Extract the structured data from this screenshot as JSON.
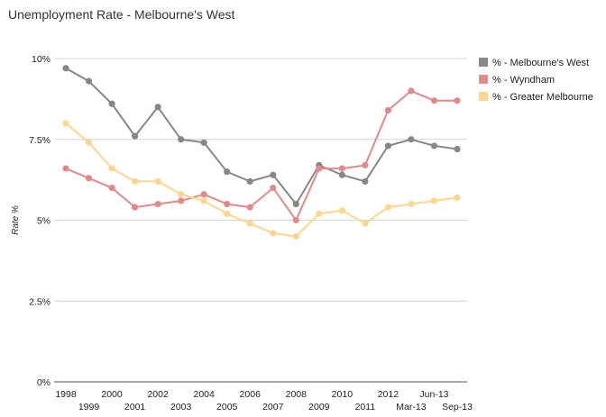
{
  "chart_data": {
    "type": "line",
    "title": "Unemployment Rate - Melbourne's West",
    "ylabel": "Rate %",
    "xlabel": "",
    "ylim": [
      0,
      10
    ],
    "yticks": [
      0,
      2.5,
      5,
      7.5,
      10
    ],
    "ytick_labels": [
      "0%",
      "2.5%",
      "5%",
      "7.5%",
      "10%"
    ],
    "grid": true,
    "legend_position": "right",
    "categories": [
      "1998",
      "1999",
      "2000",
      "2001",
      "2002",
      "2003",
      "2004",
      "2005",
      "2006",
      "2007",
      "2008",
      "2009",
      "2010",
      "2011",
      "2012",
      "Mar-13",
      "Jun-13",
      "Sep-13"
    ],
    "series": [
      {
        "name": "% - Melbourne's West",
        "color": "#878787",
        "values": [
          9.7,
          9.3,
          8.6,
          7.6,
          8.5,
          7.5,
          7.4,
          6.5,
          6.2,
          6.4,
          5.5,
          6.7,
          6.4,
          6.2,
          7.3,
          7.5,
          7.3,
          7.2
        ]
      },
      {
        "name": "% - Wyndham",
        "color": "#e08a8a",
        "values": [
          6.6,
          6.3,
          6.0,
          5.4,
          5.5,
          5.6,
          5.8,
          5.5,
          5.4,
          6.0,
          5.0,
          6.6,
          6.6,
          6.7,
          8.4,
          9.0,
          8.7,
          8.7
        ]
      },
      {
        "name": "% - Greater Melbourne",
        "color": "#fbd68f",
        "values": [
          8.0,
          7.4,
          6.6,
          6.2,
          6.2,
          5.8,
          5.6,
          5.2,
          4.9,
          4.6,
          4.5,
          5.2,
          5.3,
          4.9,
          5.4,
          5.5,
          5.6,
          5.7
        ]
      }
    ]
  }
}
